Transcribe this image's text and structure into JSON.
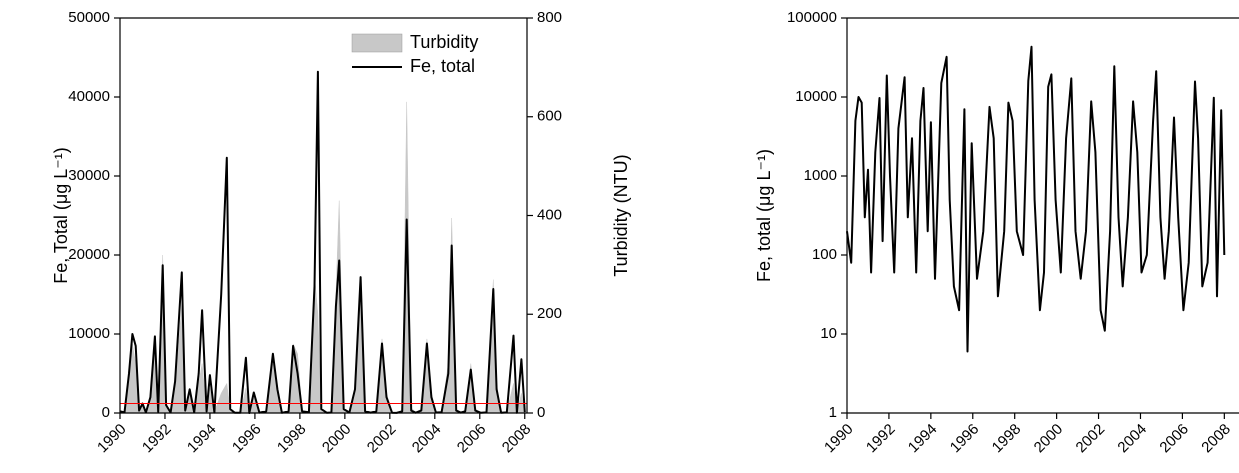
{
  "chart_data": [
    {
      "type": "line",
      "ylabel": "Fe, Total (μg L⁻¹)",
      "y2label": "Turbidity (NTU)",
      "xlim": [
        1990,
        2008.1
      ],
      "xticks": [
        1990,
        1992,
        1994,
        1996,
        1998,
        2000,
        2002,
        2004,
        2006,
        2008
      ],
      "ylim": [
        0,
        50000
      ],
      "yticks": [
        0,
        10000,
        20000,
        30000,
        40000,
        50000
      ],
      "y2lim": [
        0,
        800
      ],
      "y2ticks": [
        0,
        200,
        400,
        600,
        800
      ],
      "legend": "upper right",
      "ref_line": {
        "value": 1200,
        "color": "#ff0000"
      },
      "x": [
        1990.0,
        1990.2,
        1990.4,
        1990.55,
        1990.7,
        1990.85,
        1991.0,
        1991.15,
        1991.35,
        1991.55,
        1991.7,
        1991.9,
        1992.05,
        1992.25,
        1992.45,
        1992.75,
        1992.9,
        1993.1,
        1993.3,
        1993.5,
        1993.65,
        1993.85,
        1994.0,
        1994.2,
        1994.5,
        1994.75,
        1994.9,
        1995.1,
        1995.35,
        1995.6,
        1995.75,
        1995.95,
        1996.2,
        1996.5,
        1996.8,
        1997.0,
        1997.2,
        1997.5,
        1997.7,
        1997.9,
        1998.1,
        1998.4,
        1998.65,
        1998.8,
        1998.95,
        1999.2,
        1999.4,
        1999.6,
        1999.75,
        1999.95,
        2000.2,
        2000.45,
        2000.7,
        2000.9,
        2001.15,
        2001.4,
        2001.65,
        2001.85,
        2002.1,
        2002.3,
        2002.55,
        2002.75,
        2002.95,
        2003.15,
        2003.4,
        2003.65,
        2003.85,
        2004.05,
        2004.3,
        2004.6,
        2004.75,
        2004.95,
        2005.15,
        2005.35,
        2005.6,
        2005.8,
        2006.05,
        2006.3,
        2006.6,
        2006.75,
        2006.95,
        2007.2,
        2007.5,
        2007.65,
        2007.85,
        2008.0
      ],
      "series": [
        {
          "name": "Turbidity",
          "style": "area",
          "axis": "y2",
          "color": "#c8c8c8",
          "values": [
            3,
            2,
            60,
            140,
            100,
            5,
            20,
            2,
            30,
            130,
            3,
            320,
            15,
            2,
            50,
            220,
            5,
            40,
            2,
            60,
            100,
            4,
            50,
            2,
            40,
            60,
            8,
            2,
            1,
            50,
            1,
            40,
            2,
            5,
            100,
            50,
            1,
            5,
            140,
            120,
            4,
            3,
            280,
            200,
            10,
            1,
            2,
            240,
            430,
            10,
            2,
            50,
            230,
            5,
            2,
            5,
            150,
            40,
            1,
            1,
            5,
            630,
            10,
            2,
            8,
            150,
            40,
            2,
            3,
            100,
            395,
            8,
            2,
            5,
            100,
            8,
            1,
            2,
            270,
            60,
            2,
            2,
            60,
            1,
            40,
            3
          ]
        },
        {
          "name": "Fe, total",
          "style": "line",
          "color": "#000000",
          "values": [
            200,
            80,
            5000,
            10000,
            8500,
            300,
            1200,
            60,
            2000,
            9700,
            150,
            18700,
            1000,
            60,
            4000,
            17800,
            300,
            3000,
            60,
            5000,
            13000,
            200,
            4800,
            50,
            15000,
            32300,
            500,
            40,
            20,
            7000,
            6,
            2600,
            50,
            200,
            7500,
            3000,
            30,
            200,
            8500,
            5000,
            200,
            100,
            16000,
            43200,
            500,
            20,
            60,
            13500,
            19300,
            500,
            60,
            3000,
            17200,
            200,
            50,
            200,
            8800,
            2000,
            20,
            11,
            200,
            24500,
            300,
            40,
            300,
            8800,
            2000,
            60,
            100,
            5000,
            21200,
            300,
            50,
            200,
            5500,
            300,
            20,
            80,
            15700,
            3000,
            40,
            80,
            9800,
            30,
            6800,
            100
          ]
        }
      ]
    },
    {
      "type": "line",
      "ylabel": "Fe, total  (μg L⁻¹)",
      "yscale": "log",
      "xlim": [
        1990,
        2008.7
      ],
      "xticks": [
        1990,
        1992,
        1994,
        1996,
        1998,
        2000,
        2002,
        2004,
        2006,
        2008
      ],
      "ylim": [
        1,
        100000
      ],
      "yticks": [
        1,
        10,
        100,
        1000,
        10000,
        100000
      ],
      "color": "#000000",
      "x": [
        1990.0,
        1990.2,
        1990.4,
        1990.55,
        1990.7,
        1990.85,
        1991.0,
        1991.15,
        1991.35,
        1991.55,
        1991.7,
        1991.9,
        1992.05,
        1992.25,
        1992.45,
        1992.75,
        1992.9,
        1993.1,
        1993.3,
        1993.5,
        1993.65,
        1993.85,
        1994.0,
        1994.2,
        1994.5,
        1994.75,
        1994.9,
        1995.1,
        1995.35,
        1995.6,
        1995.75,
        1995.95,
        1996.2,
        1996.5,
        1996.8,
        1997.0,
        1997.2,
        1997.5,
        1997.7,
        1997.9,
        1998.1,
        1998.4,
        1998.65,
        1998.8,
        1998.95,
        1999.2,
        1999.4,
        1999.6,
        1999.75,
        1999.95,
        2000.2,
        2000.45,
        2000.7,
        2000.9,
        2001.15,
        2001.4,
        2001.65,
        2001.85,
        2002.1,
        2002.3,
        2002.55,
        2002.75,
        2002.95,
        2003.15,
        2003.4,
        2003.65,
        2003.85,
        2004.05,
        2004.3,
        2004.6,
        2004.75,
        2004.95,
        2005.15,
        2005.35,
        2005.6,
        2005.8,
        2006.05,
        2006.3,
        2006.6,
        2006.75,
        2006.95,
        2007.2,
        2007.5,
        2007.65,
        2007.85,
        2008.0
      ],
      "values": [
        200,
        80,
        5000,
        10000,
        8500,
        300,
        1200,
        60,
        2000,
        9700,
        150,
        18700,
        1000,
        60,
        4000,
        17800,
        300,
        3000,
        60,
        5000,
        13000,
        200,
        4800,
        50,
        15000,
        32300,
        500,
        40,
        20,
        7000,
        6,
        2600,
        50,
        200,
        7500,
        3000,
        30,
        200,
        8500,
        5000,
        200,
        100,
        16000,
        43200,
        500,
        20,
        60,
        13500,
        19300,
        500,
        60,
        3000,
        17200,
        200,
        50,
        200,
        8800,
        2000,
        20,
        11,
        200,
        24500,
        300,
        40,
        300,
        8800,
        2000,
        60,
        100,
        5000,
        21200,
        300,
        50,
        200,
        5500,
        300,
        20,
        80,
        15700,
        3000,
        40,
        80,
        9800,
        30,
        6800,
        100
      ]
    }
  ]
}
